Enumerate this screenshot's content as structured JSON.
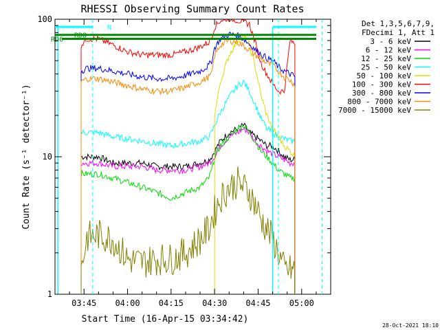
{
  "chart_data": {
    "type": "line",
    "title": "RHESSI Observing Summary Count Rates",
    "xlabel": "Start Time (16-Apr-15 03:34:42)",
    "ylabel": "Count Rate (s⁻¹ detector⁻¹)",
    "yscale": "log",
    "ylim": [
      1,
      100
    ],
    "xlim": [
      "03:35",
      "05:10"
    ],
    "x_ticks": [
      "03:45",
      "04:00",
      "04:15",
      "04:30",
      "04:45",
      "05:00"
    ],
    "y_ticks": [
      "1",
      "10",
      "100"
    ],
    "legend_header": [
      "Det 1,3,5,6,7,9,",
      "FDecimi 1, Att 1"
    ],
    "legend_position": "right",
    "x": [
      "03:35",
      "03:42",
      "03:43",
      "03:44",
      "03:46",
      "03:50",
      "03:55",
      "04:00",
      "04:05",
      "04:10",
      "04:15",
      "04:20",
      "04:25",
      "04:28",
      "04:29",
      "04:30",
      "04:32",
      "04:35",
      "04:38",
      "04:40",
      "04:42",
      "04:44",
      "04:46",
      "04:48",
      "04:50",
      "04:52",
      "04:54",
      "04:56",
      "04:58",
      "05:00",
      "05:10"
    ],
    "series": [
      {
        "name": "3 - 6 keV",
        "color": "#000000",
        "values": [
          null,
          null,
          null,
          10,
          10,
          10,
          9,
          9,
          9,
          8.5,
          8.5,
          8.5,
          9,
          9.5,
          10,
          11,
          13,
          15,
          16,
          17,
          15,
          14,
          13,
          12,
          12,
          11,
          10,
          9.5,
          9.5,
          null,
          null
        ]
      },
      {
        "name": "6 - 12 keV",
        "color": "#ff00ff",
        "values": [
          null,
          null,
          null,
          9,
          9,
          9,
          8.5,
          8.5,
          8.5,
          8,
          8,
          8,
          8.5,
          9,
          9.5,
          10,
          12,
          14,
          15,
          16,
          15,
          13,
          12,
          11,
          10.5,
          10,
          9.5,
          9,
          9,
          null,
          null
        ]
      },
      {
        "name": "12 - 25 keV",
        "color": "#00dd00",
        "values": [
          null,
          null,
          null,
          7.5,
          7.5,
          7.5,
          7,
          6.5,
          6,
          5.5,
          5,
          5.5,
          6,
          7,
          8,
          10,
          12,
          14,
          16,
          17,
          15,
          13,
          11,
          10,
          9,
          8,
          7.5,
          7,
          7,
          null,
          null
        ]
      },
      {
        "name": "25 - 50 keV",
        "color": "#00ffff",
        "values": [
          null,
          null,
          null,
          15,
          15,
          15,
          14,
          13.5,
          13,
          12.5,
          12,
          12.5,
          13,
          14,
          15,
          17,
          21,
          27,
          33,
          35,
          30,
          24,
          19,
          16,
          15,
          14,
          13.5,
          13,
          13,
          null,
          null
        ]
      },
      {
        "name": "50 - 100 keV",
        "color": "#dddd00",
        "values": [
          null,
          null,
          null,
          null,
          null,
          null,
          null,
          null,
          null,
          null,
          null,
          null,
          null,
          null,
          null,
          20,
          35,
          55,
          70,
          75,
          65,
          45,
          28,
          20,
          16,
          14,
          12,
          11,
          10,
          null,
          null
        ]
      },
      {
        "name": "100 - 300 keV",
        "color": "#ff0000",
        "values": [
          null,
          null,
          null,
          65,
          72,
          72,
          65,
          58,
          55,
          55,
          55,
          58,
          63,
          68,
          74,
          88,
          98,
          102,
          98,
          96,
          92,
          68,
          48,
          40,
          34,
          30,
          30,
          70,
          66,
          null,
          null
        ]
      },
      {
        "name": "300 - 800 keV",
        "color": "#0000ff",
        "values": [
          null,
          null,
          null,
          42,
          44,
          44,
          42,
          40,
          38,
          37,
          37,
          39,
          42,
          46,
          50,
          62,
          72,
          78,
          76,
          72,
          66,
          60,
          56,
          52,
          50,
          45,
          42,
          40,
          38,
          null,
          null
        ]
      },
      {
        "name": "800 - 7000 keV",
        "color": "#ff8800",
        "values": [
          null,
          null,
          null,
          35,
          37,
          37,
          35,
          33,
          31,
          30,
          30,
          32,
          35,
          38,
          40,
          55,
          65,
          70,
          68,
          64,
          60,
          55,
          52,
          48,
          46,
          42,
          38,
          36,
          33,
          null,
          null
        ]
      },
      {
        "name": "7000 - 15000 keV",
        "color": "#808000",
        "values": [
          null,
          null,
          null,
          1.5,
          2.6,
          2.7,
          2.5,
          1.8,
          1.7,
          1.8,
          1.8,
          2.0,
          2.5,
          3.0,
          3.5,
          4.0,
          5.0,
          6.0,
          6.5,
          6.0,
          5.5,
          4.5,
          3.5,
          3.0,
          2.5,
          2.0,
          1.5,
          1.5,
          1.5,
          null,
          null
        ]
      }
    ],
    "annotations": {
      "rd0_label": "RD0",
      "rd6_label": "RD6",
      "n_label": "N",
      "rd0_level": 77,
      "rd6_level": 72,
      "n_level": 88,
      "rd0_color": "#008800",
      "rd6_color": "#008800",
      "n_color": "#00ffff"
    },
    "markers": {
      "dashed_lines": [
        "03:48",
        "04:52",
        "05:07"
      ],
      "solid_cyan_lines": [
        "03:36",
        "04:50"
      ]
    }
  },
  "footer": {
    "timestamp": "28-Oct-2021 18:10"
  }
}
